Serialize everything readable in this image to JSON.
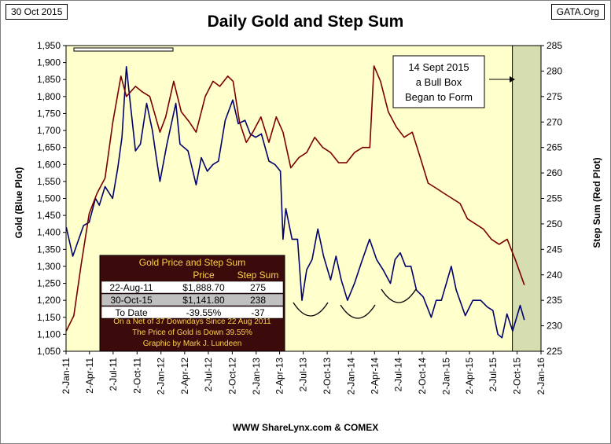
{
  "date_label": "30 Oct 2015",
  "source_label": "GATA.Org",
  "footer": "WWW ShareLynx.com & COMEX",
  "colors": {
    "gold": "#00006e",
    "step": "#7a0000",
    "plot_bg": "#ffffcc",
    "box_bg": "#d6ddb0",
    "table_bg": "#3b0a0a",
    "table_text": "#ffd24a"
  },
  "chart_data": {
    "type": "line",
    "title": "Daily Gold and Step Sum",
    "ylabel_left": "Gold   (Blue Plot)",
    "ylabel_right": "Step Sum   (Red Plot)",
    "y_left_lim": [
      1050,
      1950
    ],
    "y_right_lim": [
      225,
      285
    ],
    "y_left_ticks": [
      "1,050",
      "1,100",
      "1,150",
      "1,200",
      "1,250",
      "1,300",
      "1,350",
      "1,400",
      "1,450",
      "1,500",
      "1,550",
      "1,600",
      "1,650",
      "1,700",
      "1,750",
      "1,800",
      "1,850",
      "1,900",
      "1,950"
    ],
    "y_right_ticks": [
      "225",
      "230",
      "235",
      "240",
      "245",
      "250",
      "255",
      "260",
      "265",
      "270",
      "275",
      "280",
      "285"
    ],
    "x_ticks": [
      "2-Jan-11",
      "2-Apr-11",
      "2-Jul-11",
      "2-Oct-11",
      "2-Jan-12",
      "2-Apr-12",
      "2-Jul-12",
      "2-Oct-12",
      "2-Jan-13",
      "2-Apr-13",
      "2-Jul-13",
      "2-Oct-13",
      "2-Jan-14",
      "2-Apr-14",
      "2-Jul-14",
      "2-Oct-14",
      "2-Jan-15",
      "2-Apr-15",
      "2-Jul-15",
      "2-Oct-15",
      "2-Jan-16"
    ],
    "grid": false,
    "series": [
      {
        "axis": "left",
        "color": "#00006e",
        "x": [
          "2011-01-03",
          "2011-01-28",
          "2011-02-15",
          "2011-03-10",
          "2011-04-01",
          "2011-04-25",
          "2011-05-10",
          "2011-06-01",
          "2011-06-30",
          "2011-07-20",
          "2011-08-05",
          "2011-08-22",
          "2011-09-06",
          "2011-09-26",
          "2011-10-15",
          "2011-11-08",
          "2011-11-30",
          "2011-12-15",
          "2011-12-29",
          "2012-01-25",
          "2012-02-28",
          "2012-03-15",
          "2012-04-15",
          "2012-05-16",
          "2012-06-05",
          "2012-06-28",
          "2012-07-20",
          "2012-08-10",
          "2012-09-05",
          "2012-10-04",
          "2012-10-25",
          "2012-11-20",
          "2012-12-10",
          "2012-12-31",
          "2013-01-22",
          "2013-02-20",
          "2013-03-15",
          "2013-04-05",
          "2013-04-15",
          "2013-04-26",
          "2013-05-20",
          "2013-06-10",
          "2013-06-27",
          "2013-07-15",
          "2013-08-05",
          "2013-08-27",
          "2013-09-18",
          "2013-10-15",
          "2013-11-05",
          "2013-11-25",
          "2013-12-19",
          "2014-01-15",
          "2014-02-10",
          "2014-03-14",
          "2014-04-10",
          "2014-05-05",
          "2014-06-02",
          "2014-06-20",
          "2014-07-10",
          "2014-07-30",
          "2014-08-20",
          "2014-09-10",
          "2014-10-06",
          "2014-11-06",
          "2014-11-25",
          "2014-12-15",
          "2015-01-22",
          "2015-02-10",
          "2015-03-17",
          "2015-04-15",
          "2015-05-15",
          "2015-06-10",
          "2015-07-01",
          "2015-07-20",
          "2015-08-05",
          "2015-08-24",
          "2015-09-15",
          "2015-10-14",
          "2015-10-30"
        ],
        "values": [
          1415,
          1330,
          1370,
          1420,
          1430,
          1500,
          1480,
          1535,
          1500,
          1590,
          1680,
          1888,
          1780,
          1640,
          1660,
          1780,
          1700,
          1620,
          1550,
          1660,
          1780,
          1660,
          1640,
          1540,
          1620,
          1580,
          1600,
          1610,
          1730,
          1790,
          1720,
          1730,
          1690,
          1680,
          1690,
          1610,
          1600,
          1580,
          1380,
          1470,
          1380,
          1380,
          1200,
          1290,
          1320,
          1410,
          1330,
          1260,
          1330,
          1260,
          1200,
          1250,
          1310,
          1380,
          1320,
          1290,
          1250,
          1320,
          1340,
          1300,
          1300,
          1230,
          1210,
          1150,
          1200,
          1200,
          1300,
          1230,
          1155,
          1200,
          1200,
          1180,
          1170,
          1100,
          1090,
          1160,
          1110,
          1185,
          1142
        ]
      },
      {
        "axis": "right",
        "color": "#7a0000",
        "x": [
          "2011-01-03",
          "2011-02-01",
          "2011-03-01",
          "2011-04-01",
          "2011-05-01",
          "2011-06-01",
          "2011-07-01",
          "2011-08-01",
          "2011-08-22",
          "2011-09-26",
          "2011-10-20",
          "2011-11-20",
          "2011-12-29",
          "2012-01-20",
          "2012-02-20",
          "2012-03-20",
          "2012-04-20",
          "2012-05-16",
          "2012-06-20",
          "2012-07-20",
          "2012-08-15",
          "2012-09-15",
          "2012-10-05",
          "2012-10-30",
          "2012-11-25",
          "2012-12-20",
          "2013-01-20",
          "2013-02-20",
          "2013-03-20",
          "2013-04-15",
          "2013-05-15",
          "2013-06-15",
          "2013-07-15",
          "2013-08-15",
          "2013-09-15",
          "2013-10-15",
          "2013-11-15",
          "2013-12-15",
          "2014-01-15",
          "2014-02-15",
          "2014-03-15",
          "2014-03-31",
          "2014-04-25",
          "2014-05-25",
          "2014-06-25",
          "2014-07-25",
          "2014-08-25",
          "2014-09-25",
          "2014-10-25",
          "2014-11-25",
          "2014-12-25",
          "2015-01-25",
          "2015-02-25",
          "2015-03-25",
          "2015-04-25",
          "2015-05-25",
          "2015-06-25",
          "2015-07-25",
          "2015-08-25",
          "2015-09-25",
          "2015-10-30"
        ],
        "values": [
          229,
          232,
          242,
          252,
          256,
          259,
          270,
          279,
          275,
          277,
          276,
          275,
          268,
          271,
          278,
          272,
          270,
          268,
          275,
          278,
          277,
          279,
          278,
          270,
          266,
          268,
          271,
          266,
          271,
          268,
          261,
          263,
          264,
          267,
          265,
          264,
          262,
          262,
          264,
          265,
          265,
          281,
          278,
          272,
          269,
          267,
          268,
          263,
          258,
          257,
          256,
          255,
          254,
          251,
          250,
          249,
          247,
          246,
          247,
          243,
          238
        ]
      }
    ],
    "table": {
      "title": "Gold Price and Step Sum",
      "headers": [
        "",
        "Price",
        "Step Sum"
      ],
      "rows": [
        [
          "22-Aug-11",
          "$1,888.70",
          "275"
        ],
        [
          "30-Oct-15",
          "$1,141.80",
          "238"
        ],
        [
          "To Date",
          "-39.55%",
          "-37"
        ]
      ],
      "notes": [
        "On a Net of 37 Downdays Since 22 Aug 2011",
        "The Price of Gold is Down 39.55%",
        "Graphic by Mark J. Lundeen"
      ]
    },
    "annotation": [
      "14 Sept 2015",
      "a Bull Box",
      "Began to Form"
    ],
    "box_start": "2015-09-14"
  }
}
